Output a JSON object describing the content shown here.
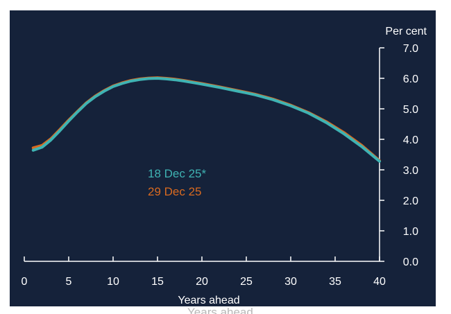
{
  "chart_data": {
    "type": "line",
    "title": "",
    "xlabel": "Years ahead",
    "ylabel": "Per cent",
    "xlim": [
      0,
      40
    ],
    "ylim": [
      0,
      7
    ],
    "xticks": [
      "0",
      "5",
      "10",
      "15",
      "20",
      "25",
      "30",
      "35",
      "40"
    ],
    "yticks": [
      "0.0",
      "1.0",
      "2.0",
      "3.0",
      "4.0",
      "5.0",
      "6.0",
      "7.0"
    ],
    "grid": false,
    "legend_position": "center-left",
    "series": [
      {
        "name": "29 Dec 25",
        "color": "#d96a20",
        "x": [
          1,
          2,
          3,
          4,
          5,
          6,
          7,
          8,
          9,
          10,
          11,
          12,
          13,
          14,
          15,
          16,
          17,
          18,
          19,
          20,
          22,
          24,
          25,
          26,
          28,
          30,
          32,
          34,
          36,
          38,
          40
        ],
        "y": [
          3.72,
          3.8,
          4.02,
          4.32,
          4.63,
          4.92,
          5.2,
          5.42,
          5.6,
          5.75,
          5.85,
          5.93,
          5.98,
          6.01,
          6.02,
          6.0,
          5.97,
          5.93,
          5.88,
          5.83,
          5.72,
          5.6,
          5.54,
          5.48,
          5.32,
          5.12,
          4.88,
          4.58,
          4.22,
          3.8,
          3.3
        ]
      },
      {
        "name": "18 Dec 25*",
        "color": "#3fb3b3",
        "x": [
          1,
          2,
          3,
          4,
          5,
          6,
          7,
          8,
          9,
          10,
          11,
          12,
          13,
          14,
          15,
          16,
          17,
          18,
          19,
          20,
          22,
          24,
          25,
          26,
          28,
          30,
          32,
          34,
          36,
          38,
          40
        ],
        "y": [
          3.64,
          3.74,
          3.98,
          4.28,
          4.6,
          4.9,
          5.18,
          5.4,
          5.58,
          5.73,
          5.83,
          5.91,
          5.96,
          5.99,
          6.0,
          5.98,
          5.95,
          5.91,
          5.86,
          5.81,
          5.7,
          5.58,
          5.52,
          5.46,
          5.3,
          5.1,
          4.86,
          4.55,
          4.18,
          3.76,
          3.28
        ]
      }
    ]
  }
}
